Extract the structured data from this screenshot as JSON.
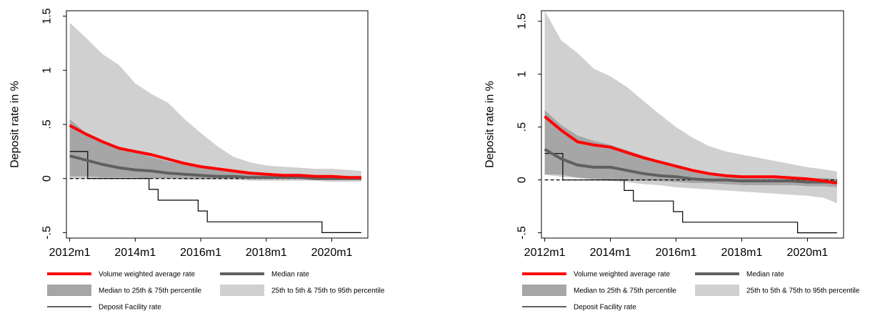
{
  "chart_data": [
    {
      "type": "line",
      "ylabel": "Deposit rate in %",
      "xlabel": "",
      "ylim": [
        -0.55,
        1.55
      ],
      "xlim": [
        2011.9,
        2021.1
      ],
      "x_ticks": [
        2012,
        2014,
        2016,
        2018,
        2020
      ],
      "x_tick_labels": [
        "2012m1",
        "2014m1",
        "2016m1",
        "2018m1",
        "2020m1"
      ],
      "y_ticks": [
        -0.5,
        0,
        0.5,
        1,
        1.5
      ],
      "y_tick_labels": [
        "-.5",
        "0",
        ".5",
        "1",
        "1.5"
      ],
      "grid": false,
      "legend_position": "bottom",
      "colors": {
        "weighted": "#ff0000",
        "median": "#606060",
        "band_inner": "#a6a6a6",
        "band_outer": "#d0d0d0",
        "dfr": "#000000",
        "zero": "#000000"
      },
      "legend": [
        "Volume weighted average rate",
        "Median rate",
        "Median to 25th & 75th percentile",
        "25th to 5th & 75th to 95th percentile",
        "Deposit Facility rate"
      ],
      "x": [
        2012,
        2012.5,
        2013,
        2013.5,
        2014,
        2014.5,
        2015,
        2015.5,
        2016,
        2016.5,
        2017,
        2017.5,
        2018,
        2018.5,
        2019,
        2019.5,
        2020,
        2020.5,
        2020.9
      ],
      "series": [
        {
          "name": "Volume weighted average rate",
          "values": [
            0.49,
            0.41,
            0.34,
            0.28,
            0.25,
            0.22,
            0.18,
            0.14,
            0.11,
            0.09,
            0.07,
            0.05,
            0.04,
            0.03,
            0.03,
            0.02,
            0.02,
            0.01,
            0.01
          ]
        },
        {
          "name": "Median rate",
          "values": [
            0.21,
            0.17,
            0.13,
            0.1,
            0.08,
            0.07,
            0.05,
            0.04,
            0.03,
            0.02,
            0.02,
            0.01,
            0.01,
            0.01,
            0.01,
            0.0,
            0.0,
            0.0,
            0.0
          ]
        },
        {
          "name": "25th percentile",
          "values": [
            0.02,
            0.02,
            0.01,
            0.01,
            0.01,
            0.0,
            0.0,
            0.0,
            0.0,
            0.0,
            0.0,
            0.0,
            0.0,
            0.0,
            0.0,
            0.0,
            0.0,
            0.0,
            0.0
          ]
        },
        {
          "name": "75th percentile",
          "values": [
            0.55,
            0.42,
            0.35,
            0.29,
            0.25,
            0.2,
            0.16,
            0.13,
            0.1,
            0.08,
            0.06,
            0.05,
            0.04,
            0.03,
            0.03,
            0.03,
            0.03,
            0.02,
            0.02
          ]
        },
        {
          "name": "5th percentile",
          "values": [
            0.0,
            0.0,
            0.0,
            0.0,
            0.0,
            0.0,
            0.0,
            -0.01,
            -0.01,
            -0.01,
            -0.01,
            -0.02,
            -0.02,
            -0.02,
            -0.02,
            -0.02,
            -0.03,
            -0.03,
            -0.03
          ]
        },
        {
          "name": "95th percentile",
          "values": [
            1.44,
            1.3,
            1.15,
            1.05,
            0.88,
            0.78,
            0.7,
            0.55,
            0.42,
            0.3,
            0.2,
            0.15,
            0.12,
            0.11,
            0.1,
            0.09,
            0.09,
            0.08,
            0.07
          ]
        }
      ],
      "dfr_steps": [
        [
          2012,
          0.25
        ],
        [
          2012.55,
          0.0
        ],
        [
          2014.42,
          -0.1
        ],
        [
          2014.7,
          -0.2
        ],
        [
          2015.92,
          -0.3
        ],
        [
          2016.2,
          -0.4
        ],
        [
          2019.7,
          -0.5
        ],
        [
          2020.9,
          -0.5
        ]
      ]
    },
    {
      "type": "line",
      "ylabel": "Deposit rate in %",
      "xlabel": "",
      "ylim": [
        -0.55,
        1.6
      ],
      "xlim": [
        2011.9,
        2021.1
      ],
      "x_ticks": [
        2012,
        2014,
        2016,
        2018,
        2020
      ],
      "x_tick_labels": [
        "2012m1",
        "2014m1",
        "2016m1",
        "2018m1",
        "2020m1"
      ],
      "y_ticks": [
        -0.5,
        0,
        0.5,
        1,
        1.5
      ],
      "y_tick_labels": [
        "-.5",
        "0",
        ".5",
        "1",
        "1.5"
      ],
      "grid": false,
      "legend_position": "bottom",
      "colors": {
        "weighted": "#ff0000",
        "median": "#606060",
        "band_inner": "#a6a6a6",
        "band_outer": "#d0d0d0",
        "dfr": "#000000",
        "zero": "#000000"
      },
      "legend": [
        "Volume weighted average rate",
        "Median rate",
        "Median to 25th & 75th percentile",
        "25th to 5th & 75th to 95th percentile",
        "Deposit Facility rate"
      ],
      "x": [
        2012,
        2012.5,
        2013,
        2013.5,
        2014,
        2014.5,
        2015,
        2015.5,
        2016,
        2016.5,
        2017,
        2017.5,
        2018,
        2018.5,
        2019,
        2019.5,
        2020,
        2020.5,
        2020.9
      ],
      "series": [
        {
          "name": "Volume weighted average rate",
          "values": [
            0.6,
            0.47,
            0.36,
            0.33,
            0.31,
            0.26,
            0.21,
            0.17,
            0.13,
            0.09,
            0.06,
            0.04,
            0.03,
            0.03,
            0.03,
            0.02,
            0.01,
            -0.01,
            -0.03
          ]
        },
        {
          "name": "Median rate",
          "values": [
            0.29,
            0.2,
            0.14,
            0.12,
            0.12,
            0.09,
            0.06,
            0.04,
            0.03,
            0.01,
            0.0,
            0.0,
            -0.01,
            -0.01,
            -0.01,
            -0.01,
            -0.02,
            -0.02,
            -0.02
          ]
        },
        {
          "name": "25th percentile",
          "values": [
            0.05,
            0.05,
            0.02,
            0.01,
            0.0,
            -0.01,
            -0.01,
            -0.01,
            -0.02,
            -0.03,
            -0.03,
            -0.04,
            -0.05,
            -0.05,
            -0.05,
            -0.05,
            -0.06,
            -0.06,
            -0.07
          ]
        },
        {
          "name": "75th percentile",
          "values": [
            0.66,
            0.52,
            0.42,
            0.37,
            0.33,
            0.28,
            0.23,
            0.18,
            0.14,
            0.1,
            0.07,
            0.05,
            0.04,
            0.03,
            0.03,
            0.03,
            0.02,
            0.02,
            0.01
          ]
        },
        {
          "name": "5th percentile",
          "values": [
            0.05,
            0.03,
            0.02,
            0.0,
            -0.01,
            -0.02,
            -0.04,
            -0.05,
            -0.07,
            -0.08,
            -0.09,
            -0.1,
            -0.11,
            -0.12,
            -0.13,
            -0.14,
            -0.15,
            -0.17,
            -0.22
          ]
        },
        {
          "name": "95th percentile",
          "values": [
            1.6,
            1.32,
            1.2,
            1.05,
            0.98,
            0.88,
            0.75,
            0.62,
            0.5,
            0.4,
            0.32,
            0.27,
            0.24,
            0.21,
            0.18,
            0.15,
            0.12,
            0.1,
            0.08
          ]
        }
      ],
      "dfr_steps": [
        [
          2012,
          0.25
        ],
        [
          2012.55,
          0.0
        ],
        [
          2014.42,
          -0.1
        ],
        [
          2014.7,
          -0.2
        ],
        [
          2015.92,
          -0.3
        ],
        [
          2016.2,
          -0.4
        ],
        [
          2019.7,
          -0.5
        ],
        [
          2020.9,
          -0.5
        ]
      ]
    }
  ]
}
